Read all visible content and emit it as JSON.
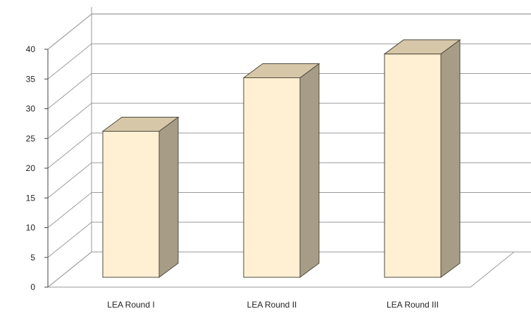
{
  "chart_data": {
    "type": "bar",
    "style": "3d",
    "categories": [
      "LEA Round I",
      "LEA Round II",
      "LEA Round III"
    ],
    "values": [
      25.5,
      34.5,
      38.5
    ],
    "ylim": [
      0,
      40
    ],
    "yticks": [
      "0",
      "5",
      "10",
      "15",
      "20",
      "25",
      "30",
      "35",
      "40"
    ],
    "grid": true,
    "legend": "none",
    "colors": {
      "bar_front": "#fff0d3",
      "bar_top": "#d6c7a8",
      "bar_side": "#a79c86",
      "bar_stroke": "#4f4a40",
      "grid": "#9a9a9a"
    }
  }
}
